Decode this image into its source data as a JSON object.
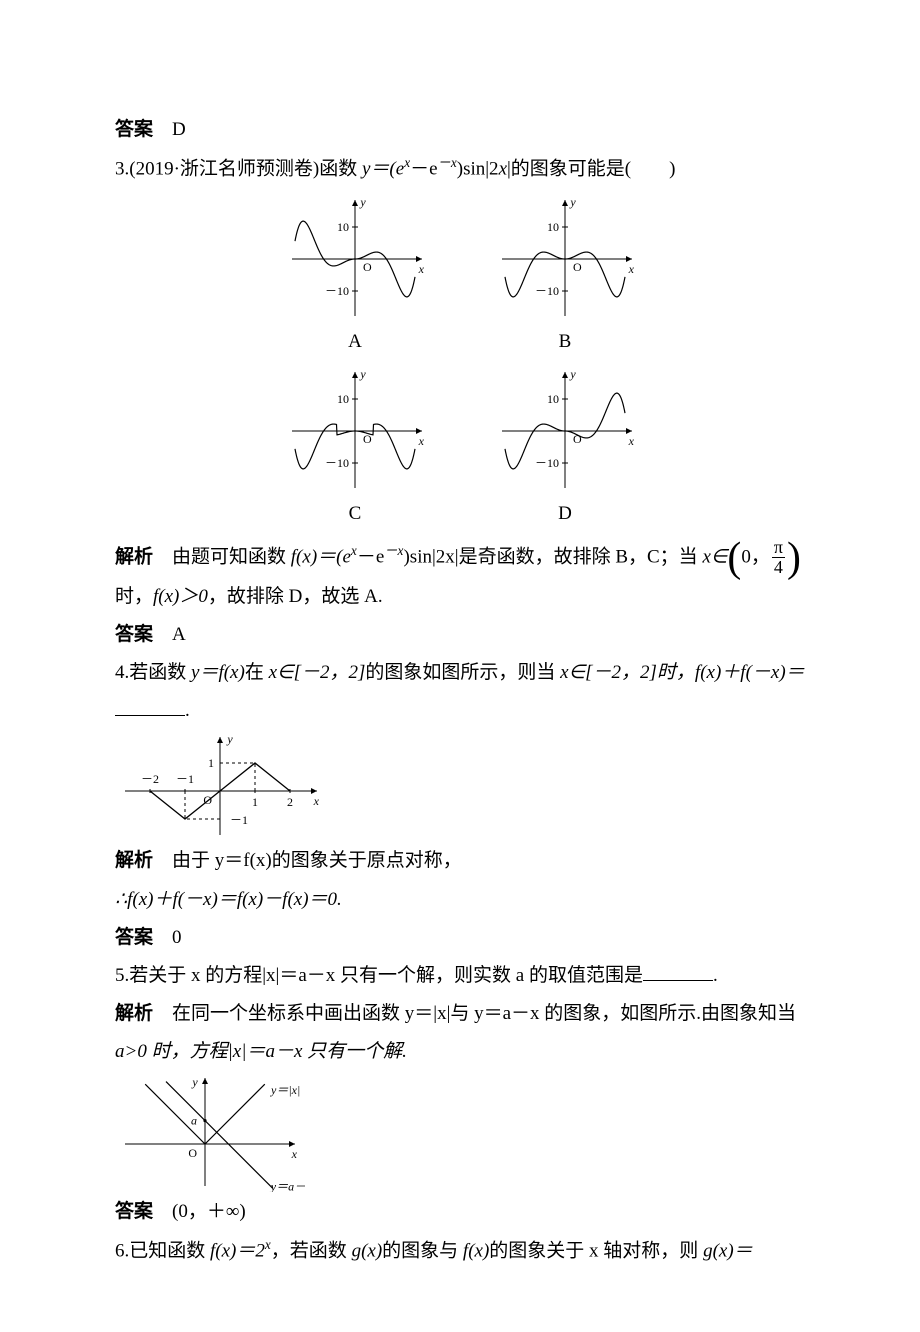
{
  "ans2": {
    "label": "答案",
    "value": "D"
  },
  "q3": {
    "number": "3.",
    "source": "(2019·浙江名师预测卷)",
    "text1": "函数 ",
    "eq": "y＝(e",
    "sup1": "x",
    "mid1": "－e",
    "sup2": "－x",
    "mid2": ")sin|2",
    "xvar": "x",
    "end": "|的图象可能是(  )",
    "graphs": {
      "axis_color": "#000",
      "curve_color": "#000",
      "tick_y_top": "10",
      "tick_y_bot": "－10",
      "ylabel": "y",
      "xlabel": "x",
      "origin": "O",
      "labels": [
        "A",
        "B",
        "C",
        "D"
      ]
    },
    "analysis_label": "解析",
    "analysis_p1a": "由题可知函数 ",
    "analysis_eq1": "f(x)＝(e",
    "analysis_sup1": "x",
    "analysis_mid1": "－e",
    "analysis_sup2": "－x",
    "analysis_mid2": ")sin|2x|",
    "analysis_p1b": "是奇函数，故排除 B，C；当 ",
    "analysis_xin": "x∈",
    "analysis_interval_l": "0，",
    "analysis_frac_num": "π",
    "analysis_frac_den": "4",
    "analysis_p2": "时，",
    "analysis_fx": "f(x)＞0",
    "analysis_end": "，故排除 D，故选 A.",
    "answer_label": "答案",
    "answer": "A"
  },
  "q4": {
    "number": "4.",
    "text_a": "若函数 ",
    "yfx": "y＝f(x)",
    "text_b": "在 ",
    "xin": "x∈[－2，2]",
    "text_c": "的图象如图所示，则当 ",
    "xin2": "x∈[－2，2]时，",
    "expr": "f(x)＋f(－x)＝",
    "graph": {
      "xticks": [
        "－2",
        "－1",
        "1",
        "2"
      ],
      "yticks": [
        "1",
        "－1"
      ],
      "ylabel": "y",
      "xlabel": "x",
      "origin": "O"
    },
    "analysis_label": "解析",
    "analysis_text": "由于 y＝f(x)的图象关于原点对称，",
    "therefore": "∴f(x)＋f(－x)＝f(x)－f(x)＝0.",
    "answer_label": "答案",
    "answer": "0"
  },
  "q5": {
    "number": "5.",
    "text": "若关于 x 的方程|x|＝a－x 只有一个解，则实数 a 的取值范围是",
    "period": ".",
    "analysis_label": "解析",
    "analysis_text": "在同一个坐标系中画出函数 y＝|x|与 y＝a－x 的图象，如图所示.由图象知当",
    "analysis_text2": "a>0 时，方程|x|＝a－x 只有一个解.",
    "graph": {
      "ylabel": "y",
      "xlabel": "x",
      "origin": "O",
      "a_label": "a",
      "curve1_label": "y＝|x|",
      "curve2_label": "y＝a－x"
    },
    "answer_label": "答案",
    "answer": "(0，＋∞)"
  },
  "q6": {
    "number": "6.",
    "text_a": "已知函数 ",
    "fx": "f(x)＝2",
    "sup": "x",
    "text_b": "，若函数 ",
    "gx": "g(x)",
    "text_c": "的图象与 ",
    "fx2": "f(x)",
    "text_d": "的图象关于 x 轴对称，则 ",
    "gx2": "g(x)＝"
  }
}
